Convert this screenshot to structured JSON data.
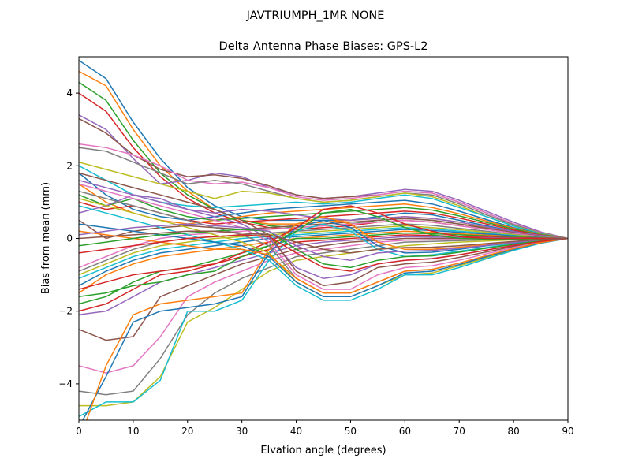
{
  "figure": {
    "suptitle": "JAVTRIUMPH_1MR  NONE"
  },
  "chart_data": {
    "type": "line",
    "title": "Delta Antenna Phase Biases: GPS-L2",
    "xlabel": "Elvation angle (degrees)",
    "ylabel": "Bias from mean (mm)",
    "xlim": [
      0,
      90
    ],
    "ylim": [
      -5,
      5
    ],
    "xticks": [
      0,
      10,
      20,
      30,
      40,
      50,
      60,
      70,
      80,
      90
    ],
    "yticks": [
      -4,
      -2,
      0,
      2,
      4
    ],
    "xtick_labels": [
      "0",
      "10",
      "20",
      "30",
      "40",
      "50",
      "60",
      "70",
      "80",
      "90"
    ],
    "ytick_labels": [
      "−4",
      "−2",
      "0",
      "2",
      "4"
    ],
    "grid": false,
    "legend": "none",
    "x": [
      0,
      5,
      10,
      15,
      20,
      25,
      30,
      35,
      40,
      45,
      50,
      55,
      60,
      65,
      70,
      75,
      80,
      85,
      90
    ],
    "colors": [
      "#1f77b4",
      "#ff7f0e",
      "#2ca02c",
      "#d62728",
      "#9467bd",
      "#8c564b",
      "#e377c2",
      "#7f7f7f",
      "#bcbd22",
      "#17becf"
    ],
    "series": [
      {
        "values": [
          4.9,
          4.4,
          3.2,
          2.2,
          1.4,
          0.9,
          0.6,
          0.5,
          0.5,
          0.5,
          0.5,
          0.6,
          0.7,
          0.65,
          0.5,
          0.35,
          0.2,
          0.08,
          0.0
        ]
      },
      {
        "values": [
          4.6,
          4.2,
          3.0,
          2.0,
          1.3,
          0.8,
          0.5,
          0.4,
          0.4,
          0.45,
          0.5,
          0.55,
          0.6,
          0.55,
          0.45,
          0.3,
          0.18,
          0.07,
          0.0
        ]
      },
      {
        "values": [
          4.3,
          3.8,
          2.7,
          1.8,
          1.2,
          0.8,
          0.5,
          0.35,
          0.3,
          0.35,
          0.4,
          0.5,
          0.55,
          0.5,
          0.4,
          0.28,
          0.16,
          0.06,
          0.0
        ]
      },
      {
        "values": [
          4.0,
          3.5,
          2.5,
          1.7,
          1.1,
          0.7,
          0.45,
          0.3,
          0.25,
          0.3,
          0.35,
          0.45,
          0.5,
          0.45,
          0.35,
          0.25,
          0.14,
          0.05,
          0.0
        ]
      },
      {
        "values": [
          3.4,
          3.0,
          2.2,
          1.5,
          1.6,
          1.8,
          1.7,
          1.4,
          1.2,
          1.1,
          1.15,
          1.25,
          1.35,
          1.3,
          1.05,
          0.75,
          0.45,
          0.18,
          0.0
        ]
      },
      {
        "values": [
          3.3,
          2.9,
          2.3,
          1.9,
          1.7,
          1.75,
          1.65,
          1.45,
          1.2,
          1.1,
          1.15,
          1.2,
          1.3,
          1.25,
          1.0,
          0.7,
          0.4,
          0.16,
          0.0
        ]
      },
      {
        "values": [
          2.6,
          2.5,
          2.3,
          2.0,
          1.6,
          1.5,
          1.55,
          1.4,
          1.15,
          1.05,
          1.1,
          1.2,
          1.3,
          1.25,
          1.0,
          0.7,
          0.4,
          0.16,
          0.0
        ]
      },
      {
        "values": [
          2.5,
          2.4,
          2.1,
          1.8,
          1.5,
          1.6,
          1.5,
          1.3,
          1.1,
          1.0,
          1.05,
          1.15,
          1.25,
          1.2,
          0.95,
          0.65,
          0.38,
          0.15,
          0.0
        ]
      },
      {
        "values": [
          2.1,
          1.9,
          1.7,
          1.5,
          1.3,
          1.1,
          1.3,
          1.25,
          1.1,
          1.0,
          1.05,
          1.15,
          1.25,
          1.15,
          0.9,
          0.6,
          0.35,
          0.14,
          0.0
        ]
      },
      {
        "values": [
          2.0,
          1.6,
          1.2,
          1.0,
          0.9,
          0.85,
          0.9,
          0.95,
          1.0,
          0.95,
          1.0,
          1.1,
          1.2,
          1.1,
          0.85,
          0.6,
          0.34,
          0.13,
          0.0
        ]
      },
      {
        "values": [
          1.8,
          1.2,
          0.8,
          0.6,
          0.5,
          0.6,
          0.7,
          0.8,
          0.85,
          0.9,
          0.95,
          1.0,
          1.05,
          0.95,
          0.75,
          0.52,
          0.3,
          0.12,
          0.0
        ]
      },
      {
        "values": [
          1.5,
          1.0,
          0.7,
          0.5,
          0.4,
          0.5,
          0.6,
          0.7,
          0.75,
          0.8,
          0.85,
          0.9,
          0.95,
          0.85,
          0.68,
          0.48,
          0.28,
          0.11,
          0.0
        ]
      },
      {
        "values": [
          1.2,
          0.9,
          1.1,
          0.8,
          0.6,
          0.5,
          0.55,
          0.6,
          0.65,
          0.7,
          0.75,
          0.8,
          0.85,
          0.78,
          0.62,
          0.44,
          0.26,
          0.1,
          0.0
        ]
      },
      {
        "values": [
          1.0,
          0.8,
          0.9,
          0.7,
          0.5,
          0.4,
          0.45,
          0.5,
          0.55,
          0.6,
          0.65,
          0.7,
          0.75,
          0.7,
          0.56,
          0.4,
          0.23,
          0.09,
          0.0
        ]
      },
      {
        "values": [
          0.7,
          0.9,
          1.2,
          1.1,
          0.8,
          0.7,
          0.8,
          0.75,
          0.65,
          0.55,
          0.5,
          0.55,
          0.6,
          0.55,
          0.45,
          0.32,
          0.19,
          0.08,
          0.0
        ]
      },
      {
        "values": [
          0.5,
          0.0,
          0.2,
          0.3,
          0.35,
          0.3,
          0.25,
          0.3,
          0.35,
          0.4,
          0.45,
          0.5,
          0.55,
          0.5,
          0.4,
          0.28,
          0.16,
          0.06,
          0.0
        ]
      },
      {
        "values": [
          -0.8,
          -0.5,
          -0.2,
          0.0,
          0.1,
          0.15,
          0.2,
          0.25,
          0.3,
          0.35,
          0.4,
          0.45,
          0.5,
          0.45,
          0.35,
          0.25,
          0.14,
          0.05,
          0.0
        ]
      },
      {
        "values": [
          -0.9,
          -0.6,
          -0.3,
          -0.1,
          0.0,
          0.05,
          0.1,
          0.15,
          0.2,
          0.25,
          0.3,
          0.35,
          0.4,
          0.36,
          0.28,
          0.2,
          0.11,
          0.04,
          0.0
        ]
      },
      {
        "values": [
          -1.0,
          -0.7,
          -0.4,
          -0.2,
          -0.1,
          0.0,
          0.05,
          0.1,
          0.15,
          0.2,
          0.25,
          0.3,
          0.35,
          0.3,
          0.24,
          0.17,
          0.1,
          0.04,
          0.0
        ]
      },
      {
        "values": [
          -1.1,
          -0.8,
          -0.5,
          -0.3,
          -0.2,
          -0.1,
          0.0,
          0.05,
          0.1,
          0.15,
          0.2,
          0.25,
          0.3,
          0.26,
          0.2,
          0.14,
          0.08,
          0.03,
          0.0
        ]
      },
      {
        "values": [
          -1.3,
          -0.9,
          -0.6,
          -0.4,
          -0.3,
          -0.2,
          -0.1,
          0.0,
          0.05,
          0.1,
          0.15,
          0.2,
          0.25,
          0.22,
          0.17,
          0.12,
          0.07,
          0.03,
          0.0
        ]
      },
      {
        "values": [
          -1.5,
          -1.0,
          -0.7,
          -0.5,
          -0.4,
          -0.3,
          -0.2,
          -0.1,
          0.0,
          0.05,
          0.1,
          0.15,
          0.2,
          0.17,
          0.13,
          0.09,
          0.05,
          0.02,
          0.0
        ]
      },
      {
        "values": [
          -1.8,
          -1.6,
          -1.2,
          -0.9,
          -0.8,
          -0.6,
          -0.4,
          -0.2,
          0.0,
          0.0,
          0.05,
          0.1,
          0.15,
          0.13,
          0.1,
          0.07,
          0.04,
          0.02,
          0.0
        ]
      },
      {
        "values": [
          -2.0,
          -1.8,
          -1.4,
          -1.0,
          -0.9,
          -0.7,
          -0.5,
          -0.3,
          -0.1,
          -0.05,
          0.0,
          0.05,
          0.1,
          0.08,
          0.06,
          0.04,
          0.02,
          0.01,
          0.0
        ]
      },
      {
        "values": [
          -2.1,
          -2.0,
          -1.6,
          -1.2,
          -1.0,
          -0.8,
          -0.6,
          -0.4,
          -0.2,
          -0.1,
          -0.05,
          0.0,
          0.05,
          0.04,
          0.03,
          0.02,
          0.01,
          0.0,
          0.0
        ]
      },
      {
        "values": [
          -2.5,
          -2.8,
          -2.7,
          -1.6,
          -1.3,
          -1.0,
          -0.7,
          -0.5,
          -0.3,
          -0.2,
          -0.1,
          -0.05,
          0.0,
          0.0,
          0.0,
          0.0,
          0.0,
          0.0,
          0.0
        ]
      },
      {
        "values": [
          -3.5,
          -3.7,
          -3.5,
          -2.7,
          -1.6,
          -1.2,
          -0.9,
          -0.6,
          -0.4,
          -0.3,
          -0.2,
          -0.1,
          -0.05,
          -0.04,
          -0.03,
          -0.02,
          -0.01,
          0.0,
          0.0
        ]
      },
      {
        "values": [
          -4.2,
          -4.3,
          -4.2,
          -3.3,
          -2.1,
          -1.5,
          -1.1,
          -0.8,
          -0.5,
          -0.4,
          -0.3,
          -0.2,
          -0.1,
          -0.08,
          -0.06,
          -0.04,
          -0.02,
          -0.01,
          0.0
        ]
      },
      {
        "values": [
          -4.6,
          -4.6,
          -4.5,
          -3.8,
          -2.3,
          -1.9,
          -1.4,
          -0.9,
          -0.6,
          -0.5,
          -0.4,
          -0.3,
          -0.2,
          -0.15,
          -0.1,
          -0.07,
          -0.04,
          -0.02,
          0.0
        ]
      },
      {
        "values": [
          -4.9,
          -4.5,
          -4.5,
          -3.9,
          -2.0,
          -2.0,
          -1.7,
          -0.6,
          0.2,
          0.4,
          0.2,
          -0.3,
          -0.5,
          -0.45,
          -0.35,
          -0.25,
          -0.14,
          -0.05,
          0.0
        ]
      },
      {
        "values": [
          -5.2,
          -3.8,
          -2.3,
          -2.0,
          -1.9,
          -1.8,
          -1.6,
          -0.4,
          0.3,
          0.5,
          0.3,
          -0.2,
          -0.4,
          -0.38,
          -0.3,
          -0.2,
          -0.12,
          -0.05,
          0.0
        ]
      },
      {
        "values": [
          -5.6,
          -3.5,
          -2.1,
          -1.8,
          -1.7,
          -1.6,
          -1.5,
          -0.3,
          0.4,
          0.6,
          0.4,
          -0.1,
          -0.3,
          -0.3,
          -0.24,
          -0.17,
          -0.1,
          -0.04,
          0.0
        ]
      },
      {
        "values": [
          -1.6,
          -1.5,
          -1.3,
          -1.2,
          -1.0,
          -0.9,
          -0.5,
          -0.2,
          0.2,
          0.7,
          0.8,
          0.6,
          0.3,
          0.1,
          0.0,
          -0.02,
          -0.02,
          -0.01,
          0.0
        ]
      },
      {
        "values": [
          -1.4,
          -1.2,
          -1.0,
          -0.9,
          -0.8,
          -0.7,
          -0.4,
          -0.1,
          0.3,
          0.8,
          0.9,
          0.7,
          0.4,
          0.2,
          0.05,
          0.0,
          0.0,
          0.0,
          0.0
        ]
      },
      {
        "values": [
          1.6,
          1.4,
          1.2,
          1.0,
          0.8,
          0.6,
          0.4,
          0.0,
          -0.8,
          -1.1,
          -1.0,
          -0.7,
          -0.6,
          -0.55,
          -0.45,
          -0.32,
          -0.19,
          -0.08,
          0.0
        ]
      },
      {
        "values": [
          1.8,
          1.6,
          1.4,
          1.2,
          1.0,
          0.8,
          0.5,
          0.1,
          -0.9,
          -1.3,
          -1.2,
          -0.8,
          -0.7,
          -0.65,
          -0.52,
          -0.37,
          -0.22,
          -0.09,
          0.0
        ]
      },
      {
        "values": [
          1.5,
          1.3,
          1.1,
          0.9,
          0.7,
          0.5,
          0.3,
          -0.1,
          -1.0,
          -1.4,
          -1.4,
          -1.0,
          -0.8,
          -0.75,
          -0.6,
          -0.42,
          -0.25,
          -0.1,
          0.0
        ]
      },
      {
        "values": [
          1.3,
          1.1,
          0.9,
          0.7,
          0.5,
          0.3,
          0.1,
          -0.2,
          -1.1,
          -1.5,
          -1.5,
          -1.2,
          -0.9,
          -0.85,
          -0.68,
          -0.48,
          -0.28,
          -0.11,
          0.0
        ]
      },
      {
        "values": [
          1.1,
          0.9,
          0.7,
          0.5,
          0.3,
          0.1,
          -0.1,
          -0.4,
          -1.2,
          -1.6,
          -1.6,
          -1.3,
          -1.0,
          -0.95,
          -0.75,
          -0.53,
          -0.31,
          -0.12,
          0.0
        ]
      },
      {
        "values": [
          0.9,
          0.7,
          0.5,
          0.3,
          0.1,
          -0.1,
          -0.3,
          -0.6,
          -1.3,
          -1.7,
          -1.7,
          -1.4,
          -1.0,
          -1.0,
          -0.8,
          -0.56,
          -0.33,
          -0.13,
          0.0
        ]
      },
      {
        "values": [
          0.4,
          0.3,
          0.2,
          0.1,
          0.0,
          -0.1,
          -0.2,
          -0.5,
          -1.2,
          -1.6,
          -1.6,
          -1.3,
          -0.95,
          -0.9,
          -0.72,
          -0.5,
          -0.3,
          -0.12,
          0.0
        ]
      },
      {
        "values": [
          0.2,
          0.1,
          0.0,
          -0.1,
          -0.2,
          -0.3,
          -0.3,
          -0.45,
          -1.1,
          -1.5,
          -1.5,
          -1.2,
          -0.9,
          -0.85,
          -0.68,
          -0.47,
          -0.28,
          -0.11,
          0.0
        ]
      },
      {
        "values": [
          -0.2,
          -0.1,
          0.0,
          0.1,
          0.15,
          0.2,
          0.25,
          0.2,
          -0.3,
          -0.7,
          -0.8,
          -0.6,
          -0.5,
          -0.48,
          -0.38,
          -0.27,
          -0.16,
          -0.06,
          0.0
        ]
      },
      {
        "values": [
          -0.4,
          -0.3,
          -0.2,
          -0.1,
          0.0,
          0.05,
          0.1,
          0.05,
          -0.4,
          -0.8,
          -0.9,
          -0.7,
          -0.6,
          -0.56,
          -0.45,
          -0.32,
          -0.19,
          -0.08,
          0.0
        ]
      },
      {
        "values": [
          0.1,
          0.2,
          0.3,
          0.35,
          0.4,
          0.35,
          0.3,
          0.2,
          -0.2,
          -0.5,
          -0.6,
          -0.4,
          -0.35,
          -0.33,
          -0.27,
          -0.19,
          -0.11,
          -0.04,
          0.0
        ]
      },
      {
        "values": [
          0.0,
          0.05,
          0.1,
          0.15,
          0.2,
          0.2,
          0.15,
          0.1,
          -0.1,
          -0.3,
          -0.4,
          -0.3,
          -0.25,
          -0.24,
          -0.2,
          -0.14,
          -0.08,
          -0.03,
          0.0
        ]
      }
    ]
  }
}
